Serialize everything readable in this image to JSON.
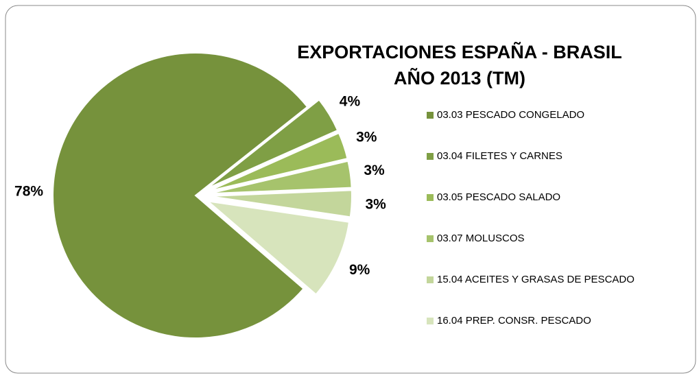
{
  "chart_data": {
    "type": "pie",
    "title": [
      "EXPORTACIONES ESPAÑA - BRASIL",
      "AÑO 2013 (TM)"
    ],
    "categories": [
      "03.03 PESCADO CONGELADO",
      "03.04 FILETES Y CARNES",
      "03.05 PESCADO SALADO",
      "03.07 MOLUSCOS",
      "15.04 ACEITES Y GRASAS DE PESCADO",
      "16.04 PREP. CONSR. PESCADO"
    ],
    "values": [
      78,
      4,
      3,
      3,
      3,
      9
    ],
    "value_labels": [
      "78%",
      "4%",
      "3%",
      "3%",
      "3%",
      "9%"
    ],
    "colors": [
      "#76923c",
      "#7f9f45",
      "#9bbb59",
      "#a6c36c",
      "#c3d69b",
      "#d7e4bc"
    ],
    "legend": "right"
  }
}
